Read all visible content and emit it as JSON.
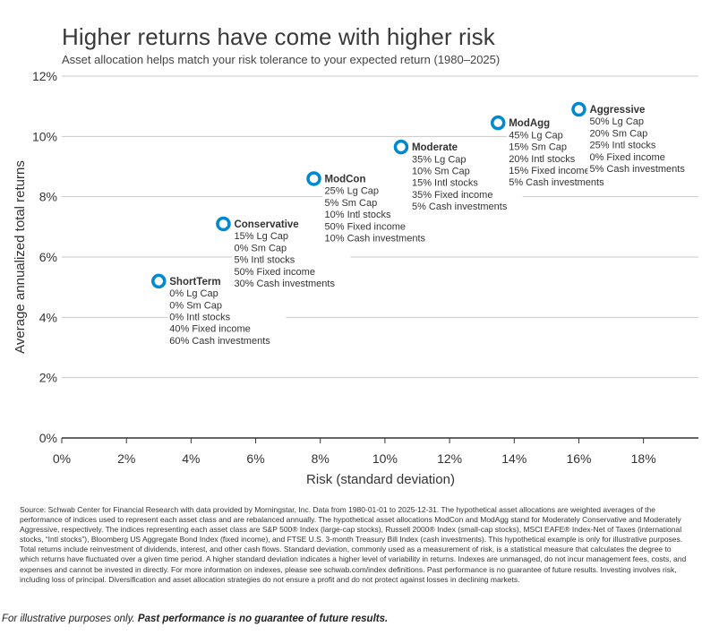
{
  "header": {
    "title": "Higher returns have come with higher risk",
    "subtitle": "Asset allocation helps match your risk tolerance to your expected return (1980–2025)"
  },
  "chart_data": {
    "type": "scatter",
    "title": "Higher returns have come with higher risk",
    "subtitle": "Asset allocation helps match your risk tolerance to your expected return (1980–2025)",
    "xlabel": "Risk (standard deviation)",
    "ylabel": "Average annualized total returns",
    "xlim": [
      0,
      19.7
    ],
    "ylim": [
      0,
      12
    ],
    "x_ticks": [
      0,
      2,
      4,
      6,
      8,
      10,
      12,
      14,
      16,
      18
    ],
    "x_tick_labels": [
      "0%",
      "2%",
      "4%",
      "6%",
      "8%",
      "10%",
      "12%",
      "14%",
      "16%",
      "18%"
    ],
    "y_ticks": [
      0,
      2,
      4,
      6,
      8,
      10,
      12
    ],
    "y_tick_labels": [
      "0%",
      "2%",
      "4%",
      "6%",
      "8%",
      "10%",
      "12%"
    ],
    "grid": "horizontal",
    "marker_color": "#0089cf",
    "points": [
      {
        "name": "ShortTerm",
        "x": 3.0,
        "y": 5.2,
        "lines": [
          "0% Lg Cap",
          "0% Sm Cap",
          "0% Intl stocks",
          "40% Fixed income",
          "60% Cash investments"
        ]
      },
      {
        "name": "Conservative",
        "x": 5.0,
        "y": 7.1,
        "lines": [
          "15% Lg Cap",
          "0% Sm Cap",
          "5% Intl stocks",
          "50% Fixed income",
          "30% Cash investments"
        ]
      },
      {
        "name": "ModCon",
        "x": 7.8,
        "y": 8.6,
        "lines": [
          "25% Lg Cap",
          "5% Sm Cap",
          "10% Intl stocks",
          "50% Fixed income",
          "10% Cash investments"
        ]
      },
      {
        "name": "Moderate",
        "x": 10.5,
        "y": 9.65,
        "lines": [
          "35% Lg Cap",
          "10% Sm Cap",
          "15% Intl stocks",
          "35% Fixed income",
          "5% Cash investments"
        ]
      },
      {
        "name": "ModAgg",
        "x": 13.5,
        "y": 10.45,
        "lines": [
          "45% Lg Cap",
          "15% Sm Cap",
          "20% Intl stocks",
          "15% Fixed income",
          "5% Cash investments"
        ]
      },
      {
        "name": "Aggressive",
        "x": 16.0,
        "y": 10.9,
        "lines": [
          "50% Lg Cap",
          "20% Sm Cap",
          "25% Intl stocks",
          "0% Fixed income",
          "5% Cash investments"
        ]
      }
    ]
  },
  "source_note": "Source: Schwab Center for Financial Research with data provided by Morningstar, Inc. Data from 1980-01-01 to 2025-12-31. The hypothetical asset allocations are weighted averages of the performance of indices used to represent each asset class and are rebalanced annually. The hypothetical asset allocations ModCon and ModAgg stand for Moderately Conservative and Moderately Aggressive, respectively. The indices representing each asset class are S&P 500® Index (large-cap stocks), Russell 2000® Index (small-cap stocks), MSCI EAFE® Index-Net of Taxes (international stocks, “Intl stocks”), Bloomberg US Aggregate Bond Index (fixed income), and FTSE U.S. 3-month Treasury Bill Index (cash investments). This hypothetical example is only for illustrative purposes. Total returns include reinvestment of dividends, interest, and other cash flows. Standard deviation, commonly used as a measurement of risk, is a statistical measure that calculates the degree to which returns have fluctuated over a given time period. A higher standard deviation indicates a higher level of variability in returns. Indexes are unmanaged, do not incur management fees, costs, and expenses and cannot be invested in directly. For more information on indexes, please see schwab.com/index definitions. Past performance is no guarantee of future results. Investing involves risk, including loss of principal. Diversification and asset allocation strategies do not ensure a profit and do not protect against losses in declining markets.",
  "footer": {
    "italic": "For illustrative purposes only.",
    "bold": "Past performance is no guarantee of future results."
  }
}
